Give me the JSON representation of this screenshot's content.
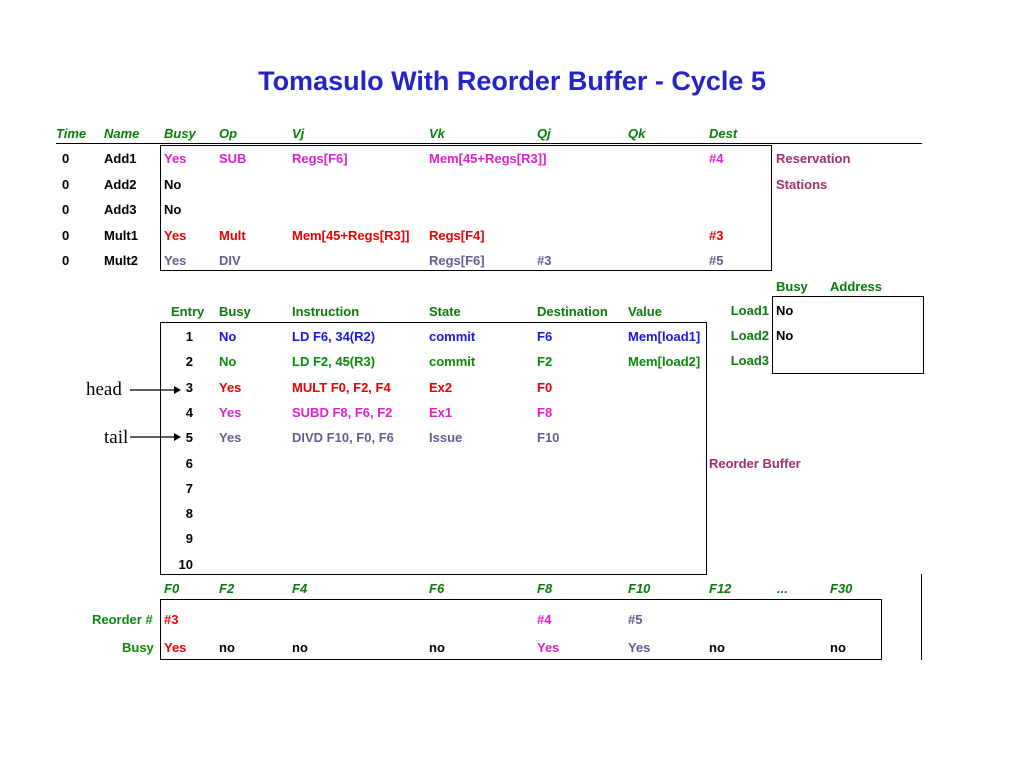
{
  "title": "Tomasulo With Reorder Buffer - Cycle 5",
  "colors": {
    "title": "#2424c8",
    "header": "#0a7a0a",
    "magenta": "#e020d0",
    "red": "#ee0000",
    "blue": "#1818e0",
    "green": "#0a8a0a",
    "gray": "#606090",
    "maroon": "#a0306a"
  },
  "rs": {
    "headers": [
      "Time",
      "Name",
      "Busy",
      "Op",
      "Vj",
      "Vk",
      "Qj",
      "Qk",
      "Dest"
    ],
    "rows": [
      {
        "time": "0",
        "name": "Add1",
        "busy": "Yes",
        "op": "SUB",
        "vj": "Regs[F6]",
        "vk": "Mem[45+Regs[R3]]",
        "qj": "",
        "qk": "",
        "dest": "#4",
        "color": "#e020d0"
      },
      {
        "time": "0",
        "name": "Add2",
        "busy": "No",
        "op": "",
        "vj": "",
        "vk": "",
        "qj": "",
        "qk": "",
        "dest": "",
        "color": "#000000"
      },
      {
        "time": "0",
        "name": "Add3",
        "busy": "No",
        "op": "",
        "vj": "",
        "vk": "",
        "qj": "",
        "qk": "",
        "dest": "",
        "color": "#000000"
      },
      {
        "time": "0",
        "name": "Mult1",
        "busy": "Yes",
        "op": "Mult",
        "vj": "Mem[45+Regs[R3]]",
        "vk": "Regs[F4]",
        "qj": "",
        "qk": "",
        "dest": "#3",
        "color": "#ee0000"
      },
      {
        "time": "0",
        "name": "Mult2",
        "busy": "Yes",
        "op": "DIV",
        "vj": "",
        "vk": "Regs[F6]",
        "qj": "#3",
        "qk": "",
        "dest": "#5",
        "color": "#606090"
      }
    ],
    "label_line1": "Reservation",
    "label_line2": "Stations"
  },
  "load": {
    "headers": [
      "Busy",
      "Address"
    ],
    "rows": [
      {
        "name": "Load1",
        "busy": "No",
        "address": ""
      },
      {
        "name": "Load2",
        "busy": "No",
        "address": ""
      },
      {
        "name": "Load3",
        "busy": "",
        "address": ""
      }
    ]
  },
  "rob": {
    "headers": [
      "Entry",
      "Busy",
      "Instruction",
      "State",
      "Destination",
      "Value"
    ],
    "rows": [
      {
        "entry": "1",
        "busy": "No",
        "instruction": "LD  F6, 34(R2)",
        "state": "commit",
        "destination": "F6",
        "value": "Mem[load1]",
        "color": "#1818e0"
      },
      {
        "entry": "2",
        "busy": "No",
        "instruction": "LD  F2, 45(R3)",
        "state": "commit",
        "destination": "F2",
        "value": "Mem[load2]",
        "color": "#0a8a0a"
      },
      {
        "entry": "3",
        "busy": "Yes",
        "instruction": "MULT F0, F2, F4",
        "state": "Ex2",
        "destination": "F0",
        "value": "",
        "color": "#ee0000"
      },
      {
        "entry": "4",
        "busy": "Yes",
        "instruction": "SUBD F8, F6, F2",
        "state": "Ex1",
        "destination": "F8",
        "value": "",
        "color": "#e020d0"
      },
      {
        "entry": "5",
        "busy": "Yes",
        "instruction": "DIVD F10, F0, F6",
        "state": "Issue",
        "destination": "F10",
        "value": "",
        "color": "#606090"
      },
      {
        "entry": "6",
        "busy": "",
        "instruction": "",
        "state": "",
        "destination": "",
        "value": "",
        "color": "#000000"
      },
      {
        "entry": "7",
        "busy": "",
        "instruction": "",
        "state": "",
        "destination": "",
        "value": "",
        "color": "#000000"
      },
      {
        "entry": "8",
        "busy": "",
        "instruction": "",
        "state": "",
        "destination": "",
        "value": "",
        "color": "#000000"
      },
      {
        "entry": "9",
        "busy": "",
        "instruction": "",
        "state": "",
        "destination": "",
        "value": "",
        "color": "#000000"
      },
      {
        "entry": "10",
        "busy": "",
        "instruction": "",
        "state": "",
        "destination": "",
        "value": "",
        "color": "#000000"
      }
    ],
    "head_label": "head",
    "tail_label": "tail",
    "label": "Reorder Buffer"
  },
  "regs": {
    "headers": [
      "F0",
      "F2",
      "F4",
      "F6",
      "F8",
      "F10",
      "F12",
      "...",
      "F30"
    ],
    "reorder_label": "Reorder #",
    "busy_label": "Busy",
    "reorder": [
      {
        "value": "#3",
        "color": "#ee0000"
      },
      {
        "value": "",
        "color": "#000000"
      },
      {
        "value": "",
        "color": "#000000"
      },
      {
        "value": "",
        "color": "#000000"
      },
      {
        "value": "#4",
        "color": "#e020d0"
      },
      {
        "value": "#5",
        "color": "#606090"
      },
      {
        "value": "",
        "color": "#000000"
      },
      {
        "value": "",
        "color": "#000000"
      },
      {
        "value": "",
        "color": "#000000"
      }
    ],
    "busy": [
      {
        "value": "Yes",
        "color": "#ee0000"
      },
      {
        "value": "no",
        "color": "#000000"
      },
      {
        "value": "no",
        "color": "#000000"
      },
      {
        "value": "no",
        "color": "#000000"
      },
      {
        "value": "Yes",
        "color": "#e020d0"
      },
      {
        "value": "Yes",
        "color": "#606090"
      },
      {
        "value": "no",
        "color": "#000000"
      },
      {
        "value": "",
        "color": "#000000"
      },
      {
        "value": "no",
        "color": "#000000"
      }
    ]
  }
}
